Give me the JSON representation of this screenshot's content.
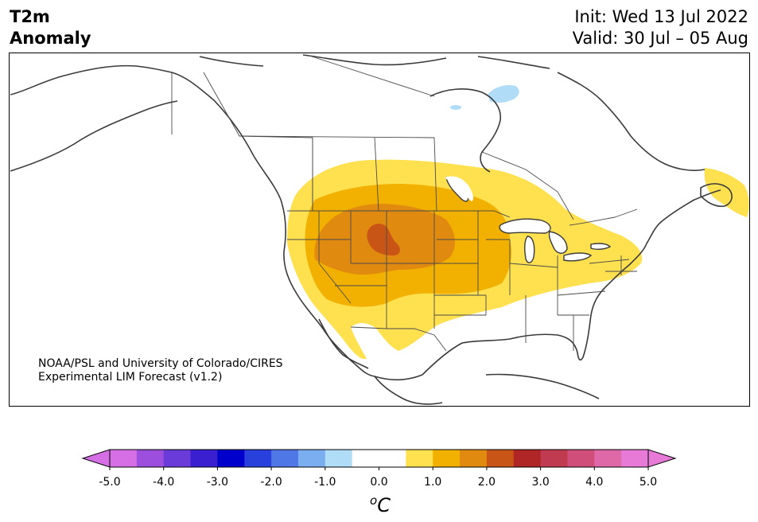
{
  "header": {
    "title_line1": "T2m",
    "title_line2": "Anomaly",
    "init": "Init: Wed 13 Jul 2022",
    "valid": "Valid: 30 Jul – 05 Aug"
  },
  "credit": {
    "line1": "NOAA/PSL and University of Colorado/CIRES",
    "line2": "Experimental LIM Forecast (v1.2)"
  },
  "colorbar": {
    "ticks": [
      "-5.0",
      "-4.0",
      "-3.0",
      "-2.0",
      "-1.0",
      "0.0",
      "1.0",
      "2.0",
      "3.0",
      "4.0",
      "5.0"
    ],
    "unit_sup": "o",
    "unit": "C",
    "colors": [
      "#d66fe6",
      "#9b4fdc",
      "#6a3bd8",
      "#3a1fd0",
      "#0000cd",
      "#2a40dc",
      "#4f78e6",
      "#7aaef0",
      "#b0dcf8",
      "#ffffff",
      "#ffffff",
      "#ffe04f",
      "#f2b100",
      "#e08a10",
      "#c85515",
      "#b02525",
      "#c03a50",
      "#cf4f7a",
      "#df68a8",
      "#e67ad6"
    ],
    "under_color": "#d66fe6",
    "over_color": "#e67ad6"
  },
  "legend_colors": {
    "anomaly_0_5_to_1": "#ffe04f",
    "anomaly_1_to_1_5": "#f2b100",
    "anomaly_1_5_to_2": "#e08a10",
    "anomaly_2_to_2_5": "#c85515",
    "anomaly_neg_0_5_to_neg_1": "#b0dcf8"
  }
}
